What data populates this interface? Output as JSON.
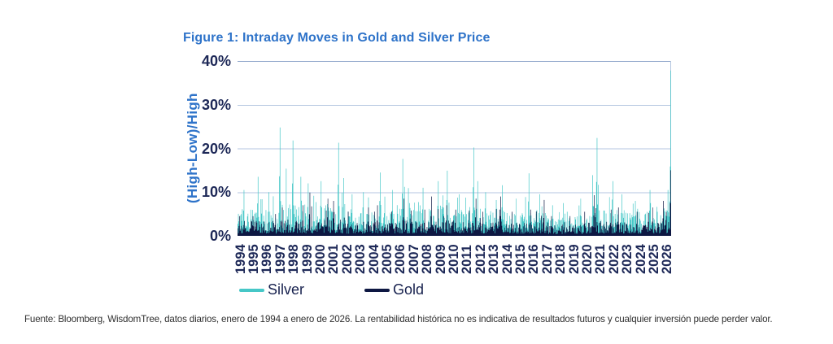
{
  "figure": {
    "title": "Figure 1: Intraday Moves in Gold and Silver Price",
    "title_color": "#2E73C9"
  },
  "axis": {
    "y_title": "(High-Low)/High",
    "y_title_color": "#2E73C9",
    "tick_color": "#1D2857",
    "gridline_color": "#B4C6E0",
    "frame_top_color": "#8FA6CA"
  },
  "legend": {
    "items": [
      {
        "label": "Silver",
        "color": "#46C7C7"
      },
      {
        "label": "Gold",
        "color": "#0D1742"
      }
    ]
  },
  "footer": {
    "source_note": "Fuente: Bloomberg, WisdomTree, datos diarios, enero de 1994 a enero de 2026. La rentabilidad histórica no es indicativa de resultados futuros y cualquier inversión puede perder valor."
  },
  "chart_data": {
    "type": "area",
    "title": "Figure 1: Intraday Moves in Gold and Silver Price",
    "ylabel": "(High-Low)/High",
    "xlabel": "",
    "ylim": [
      0,
      40
    ],
    "y_tick_labels": [
      "0%",
      "10%",
      "20%",
      "30%",
      "40%"
    ],
    "x_tick_labels": [
      "1994",
      "1995",
      "1996",
      "1997",
      "1998",
      "1999",
      "2000",
      "2001",
      "2002",
      "2003",
      "2004",
      "2005",
      "2006",
      "2007",
      "2008",
      "2009",
      "2010",
      "2011",
      "2012",
      "2013",
      "2014",
      "2015",
      "2016",
      "2017",
      "2018",
      "2019",
      "2020",
      "2021",
      "2022",
      "2023",
      "2024",
      "2025",
      "2026"
    ],
    "frequency": "daily",
    "date_range": "enero 1994 - enero 2026",
    "grid": "horizontal",
    "legend_position": "bottom",
    "series": [
      {
        "name": "Silver",
        "color": "#46C7C7",
        "typical_daily_range_pct": [
          1,
          7
        ],
        "annual_max_pct": [
          10.5,
          13.5,
          10,
          24.8,
          21.8,
          12,
          12.5,
          21.3,
          9.5,
          10,
          14.5,
          10.5,
          17.6,
          11,
          12.5,
          14.9,
          9.5,
          20.2,
          10,
          11.6,
          8.5,
          14.3,
          9.5,
          7,
          7.5,
          8.5,
          22.4,
          12.5,
          9.5,
          8,
          10.5,
          10.5,
          37.8
        ]
      },
      {
        "name": "Gold",
        "color": "#0D1742",
        "typical_daily_range_pct": [
          0.5,
          4
        ],
        "annual_max_pct": [
          4.5,
          4.5,
          5,
          6.5,
          7,
          9.9,
          8.5,
          8,
          5.5,
          6.5,
          7,
          5.5,
          8.5,
          6,
          9,
          7,
          6,
          8.5,
          5.5,
          9,
          5.5,
          6,
          8.2,
          4.5,
          4.5,
          5.5,
          9.3,
          6,
          6.5,
          5.5,
          6.5,
          8,
          15
        ]
      }
    ],
    "render": {
      "seed": 11,
      "samples_per_year": 24,
      "years_span": 32.08,
      "activity": [
        1,
        1.05,
        0.95,
        1.2,
        1.15,
        1,
        1.1,
        1.1,
        0.9,
        0.9,
        1,
        0.95,
        1.1,
        1,
        1.15,
        1.1,
        1,
        1.1,
        1,
        1.05,
        0.85,
        0.9,
        0.95,
        0.7,
        0.7,
        0.8,
        1.15,
        1,
        0.95,
        0.85,
        0.95,
        1,
        1.2
      ]
    }
  }
}
